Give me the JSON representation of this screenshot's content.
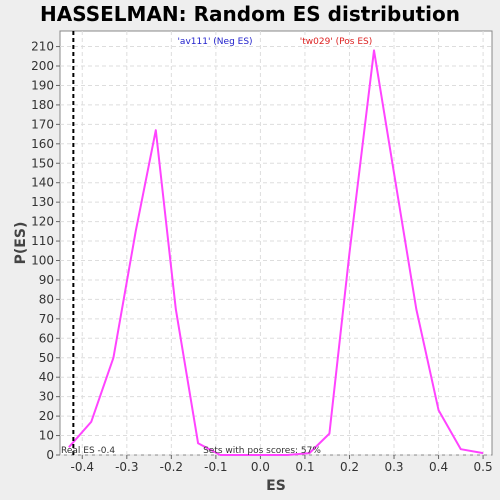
{
  "chart_data": {
    "type": "line",
    "title": "HASSELMAN: Random ES distribution",
    "xlabel": "ES",
    "ylabel": "P(ES)",
    "xlim": [
      -0.45,
      0.52
    ],
    "ylim": [
      0,
      218
    ],
    "x_ticks": [
      -0.4,
      -0.3,
      -0.2,
      -0.1,
      0.0,
      0.1,
      0.2,
      0.3,
      0.4,
      0.5
    ],
    "x_tick_labels": [
      "-0.4",
      "-0.3",
      "-0.2",
      "-0.1",
      "0.0",
      "0.1",
      "0.2",
      "0.3",
      "0.4",
      "0.5"
    ],
    "y_ticks": [
      0,
      10,
      20,
      30,
      40,
      50,
      60,
      70,
      80,
      90,
      100,
      110,
      120,
      130,
      140,
      150,
      160,
      170,
      180,
      190,
      200,
      210
    ],
    "grid": true,
    "series": [
      {
        "color": "#ff44ff",
        "x": [
          -0.43,
          -0.38,
          -0.33,
          -0.28,
          -0.235,
          -0.19,
          -0.14,
          -0.09,
          -0.04,
          0.01,
          0.06,
          0.11,
          0.155,
          0.2,
          0.255,
          0.3,
          0.35,
          0.4,
          0.45,
          0.5
        ],
        "y": [
          4,
          17,
          50,
          115,
          167,
          75,
          6,
          0,
          0,
          0,
          0,
          1,
          11,
          104,
          208,
          145,
          75,
          23,
          3,
          1
        ]
      }
    ],
    "real_es_line": {
      "x": -0.42,
      "color": "#000000",
      "style": "dashed"
    },
    "annotations": {
      "neg_es": {
        "text": "'av111' (Neg ES)",
        "color": "#2222cc"
      },
      "pos_es": {
        "text": "'tw029' (Pos ES)",
        "color": "#dd2222"
      },
      "real_es": {
        "text": "Real ES -0.4"
      },
      "pos_scores": {
        "text": "Sets with pos scores: 57%"
      }
    }
  }
}
